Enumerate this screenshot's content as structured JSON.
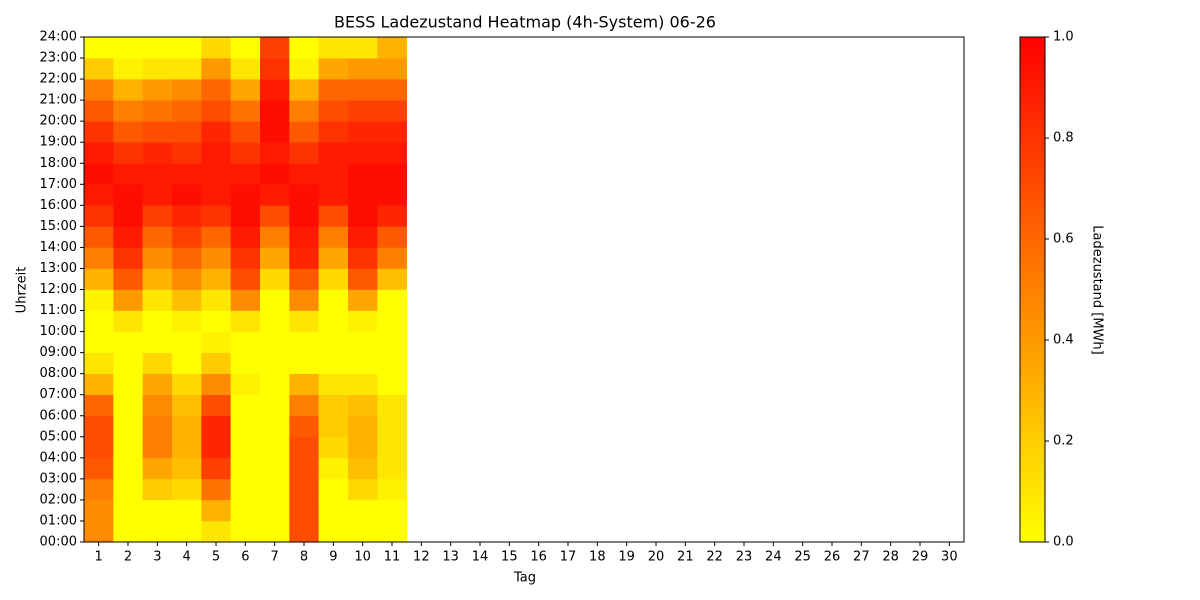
{
  "chart_data": {
    "type": "heatmap",
    "title": "BESS Ladezustand Heatmap (4h-System) 06-26",
    "xlabel": "Tag",
    "ylabel": "Uhrzeit",
    "colorbar_label": "Ladezustand [MWh]",
    "colormap": [
      "#ffff00",
      "#ff0000"
    ],
    "categories": [
      "1",
      "2",
      "3",
      "4",
      "5",
      "6",
      "7",
      "8",
      "9",
      "10",
      "11",
      "12",
      "13",
      "14",
      "15",
      "16",
      "17",
      "18",
      "19",
      "20",
      "21",
      "22",
      "23",
      "24",
      "25",
      "26",
      "27",
      "28",
      "29",
      "30"
    ],
    "ylim": [
      0,
      24
    ],
    "yticks": [
      {
        "value": 0,
        "label": "00:00"
      },
      {
        "value": 1,
        "label": "01:00"
      },
      {
        "value": 2,
        "label": "02:00"
      },
      {
        "value": 3,
        "label": "03:00"
      },
      {
        "value": 4,
        "label": "04:00"
      },
      {
        "value": 5,
        "label": "05:00"
      },
      {
        "value": 6,
        "label": "06:00"
      },
      {
        "value": 7,
        "label": "07:00"
      },
      {
        "value": 8,
        "label": "08:00"
      },
      {
        "value": 9,
        "label": "09:00"
      },
      {
        "value": 10,
        "label": "10:00"
      },
      {
        "value": 11,
        "label": "11:00"
      },
      {
        "value": 12,
        "label": "12:00"
      },
      {
        "value": 13,
        "label": "13:00"
      },
      {
        "value": 14,
        "label": "14:00"
      },
      {
        "value": 15,
        "label": "15:00"
      },
      {
        "value": 16,
        "label": "16:00"
      },
      {
        "value": 17,
        "label": "17:00"
      },
      {
        "value": 18,
        "label": "18:00"
      },
      {
        "value": 19,
        "label": "19:00"
      },
      {
        "value": 20,
        "label": "20:00"
      },
      {
        "value": 21,
        "label": "21:00"
      },
      {
        "value": 22,
        "label": "22:00"
      },
      {
        "value": 23,
        "label": "23:00"
      },
      {
        "value": 24,
        "label": "24:00"
      }
    ],
    "clim": [
      0,
      1
    ],
    "cticks": [
      {
        "value": 0,
        "label": "0.0"
      },
      {
        "value": 0.2,
        "label": "0.2"
      },
      {
        "value": 0.4,
        "label": "0.4"
      },
      {
        "value": 0.6,
        "label": "0.6"
      },
      {
        "value": 0.8,
        "label": "0.8"
      },
      {
        "value": 1,
        "label": "1.0"
      }
    ],
    "values": [
      [
        0.45,
        0.45,
        0.5,
        0.65,
        0.7,
        0.7,
        0.6,
        0.3,
        0.1,
        0,
        0,
        0.05,
        0.3,
        0.5,
        0.65,
        0.8,
        0.9,
        0.95,
        0.9,
        0.8,
        0.65,
        0.5,
        0.2,
        0
      ],
      [
        0,
        0,
        0,
        0,
        0,
        0,
        0,
        0,
        0,
        0,
        0.1,
        0.4,
        0.65,
        0.8,
        0.9,
        0.95,
        0.95,
        0.9,
        0.8,
        0.65,
        0.5,
        0.3,
        0.05,
        0
      ],
      [
        0,
        0,
        0.2,
        0.35,
        0.5,
        0.5,
        0.45,
        0.35,
        0.15,
        0,
        0,
        0.1,
        0.3,
        0.45,
        0.6,
        0.75,
        0.9,
        0.9,
        0.85,
        0.7,
        0.55,
        0.4,
        0.1,
        0
      ],
      [
        0,
        0,
        0.15,
        0.25,
        0.3,
        0.3,
        0.25,
        0.15,
        0,
        0,
        0.05,
        0.25,
        0.45,
        0.6,
        0.75,
        0.85,
        0.95,
        0.9,
        0.8,
        0.7,
        0.6,
        0.45,
        0.1,
        0
      ],
      [
        0.1,
        0.3,
        0.55,
        0.75,
        0.85,
        0.85,
        0.7,
        0.45,
        0.2,
        0.05,
        0,
        0.1,
        0.3,
        0.45,
        0.6,
        0.8,
        0.9,
        0.9,
        0.9,
        0.85,
        0.7,
        0.6,
        0.4,
        0.15
      ],
      [
        0,
        0,
        0,
        0,
        0,
        0,
        0,
        0.05,
        0,
        0,
        0.1,
        0.45,
        0.7,
        0.8,
        0.9,
        0.95,
        0.95,
        0.9,
        0.8,
        0.7,
        0.55,
        0.35,
        0.1,
        0
      ],
      [
        0,
        0,
        0,
        0,
        0,
        0,
        0,
        0,
        0,
        0,
        0,
        0,
        0.15,
        0.35,
        0.5,
        0.7,
        0.9,
        0.95,
        0.9,
        0.95,
        0.95,
        0.9,
        0.8,
        0.75
      ],
      [
        0.7,
        0.7,
        0.7,
        0.7,
        0.7,
        0.65,
        0.5,
        0.3,
        0,
        0,
        0.1,
        0.45,
        0.65,
        0.85,
        0.9,
        0.95,
        0.95,
        0.9,
        0.8,
        0.65,
        0.5,
        0.3,
        0.05,
        0
      ],
      [
        0,
        0,
        0,
        0.05,
        0.15,
        0.2,
        0.2,
        0.1,
        0,
        0,
        0,
        0,
        0.15,
        0.35,
        0.5,
        0.7,
        0.9,
        0.9,
        0.9,
        0.8,
        0.7,
        0.6,
        0.35,
        0.1
      ],
      [
        0,
        0,
        0.15,
        0.25,
        0.3,
        0.3,
        0.25,
        0.1,
        0,
        0,
        0.05,
        0.35,
        0.65,
        0.8,
        0.9,
        0.95,
        0.95,
        0.95,
        0.9,
        0.85,
        0.75,
        0.6,
        0.4,
        0.1
      ],
      [
        0,
        0,
        0.05,
        0.1,
        0.1,
        0.1,
        0.1,
        0,
        0,
        0,
        0,
        0,
        0.25,
        0.5,
        0.65,
        0.85,
        0.95,
        0.95,
        0.9,
        0.85,
        0.75,
        0.6,
        0.4,
        0.3
      ],
      null,
      null,
      null,
      null,
      null,
      null,
      null,
      null,
      null,
      null,
      null,
      null,
      null,
      null,
      null,
      null,
      null,
      null,
      null
    ]
  }
}
